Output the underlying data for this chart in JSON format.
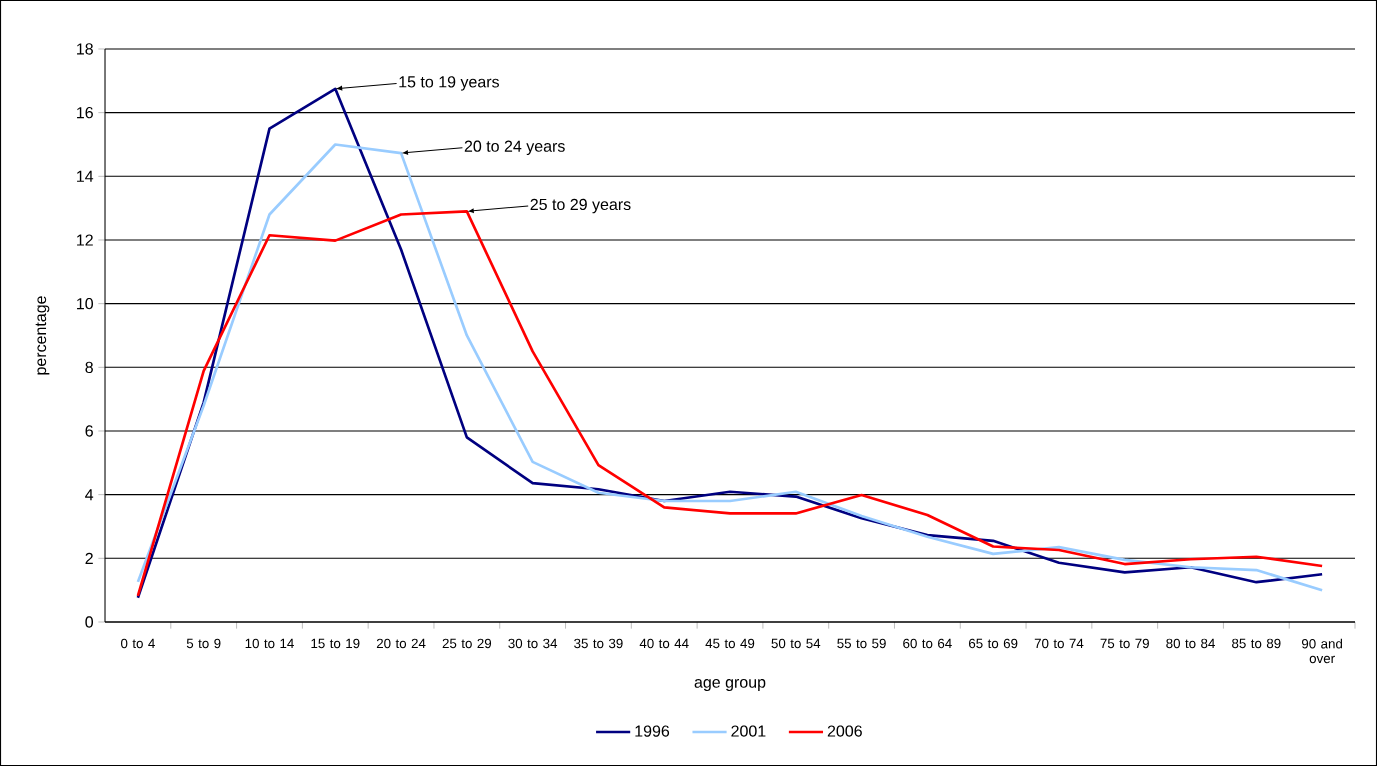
{
  "chart_data": {
    "type": "line",
    "xlabel": "age group",
    "ylabel": "percentage",
    "categories": [
      "0 to 4",
      "5 to 9",
      "10 to 14",
      "15 to 19",
      "20 to 24",
      "25 to 29",
      "30 to 34",
      "35 to 39",
      "40 to 44",
      "45 to 49",
      "50 to 54",
      "55 to 59",
      "60 to 64",
      "65 to 69",
      "70 to 74",
      "75 to 79",
      "80 to 84",
      "85 to 89",
      "90 and over"
    ],
    "series": [
      {
        "name": "1996",
        "color": "#000080",
        "values": [
          0.76,
          6.9,
          15.5,
          16.75,
          11.7,
          5.8,
          4.36,
          4.17,
          3.8,
          4.09,
          3.94,
          3.26,
          2.73,
          2.55,
          1.86,
          1.56,
          1.72,
          1.25,
          1.5
        ]
      },
      {
        "name": "2001",
        "color": "#99ccff",
        "values": [
          1.26,
          6.8,
          12.8,
          15.0,
          14.73,
          9.0,
          5.03,
          4.06,
          3.8,
          3.8,
          4.09,
          3.33,
          2.68,
          2.14,
          2.35,
          1.95,
          1.72,
          1.63,
          1.0
        ]
      },
      {
        "name": "2006",
        "color": "#ff0000",
        "values": [
          0.82,
          7.89,
          12.15,
          11.98,
          12.8,
          12.9,
          8.5,
          4.93,
          3.6,
          3.41,
          3.41,
          3.99,
          3.36,
          2.37,
          2.26,
          1.82,
          1.97,
          2.05,
          1.76
        ]
      }
    ],
    "annotations": [
      {
        "text": "15 to 19 years",
        "x": "15 to 19",
        "y": 16.75
      },
      {
        "text": "20 to 24 years",
        "x": "20 to 24",
        "y": 14.73
      },
      {
        "text": "25 to 29 years",
        "x": "25 to 29",
        "y": 12.9
      }
    ],
    "ylim": [
      0,
      18
    ],
    "yticks": [
      0,
      2,
      4,
      6,
      8,
      10,
      12,
      14,
      16,
      18
    ],
    "grid": "y",
    "legend": "bottom"
  }
}
